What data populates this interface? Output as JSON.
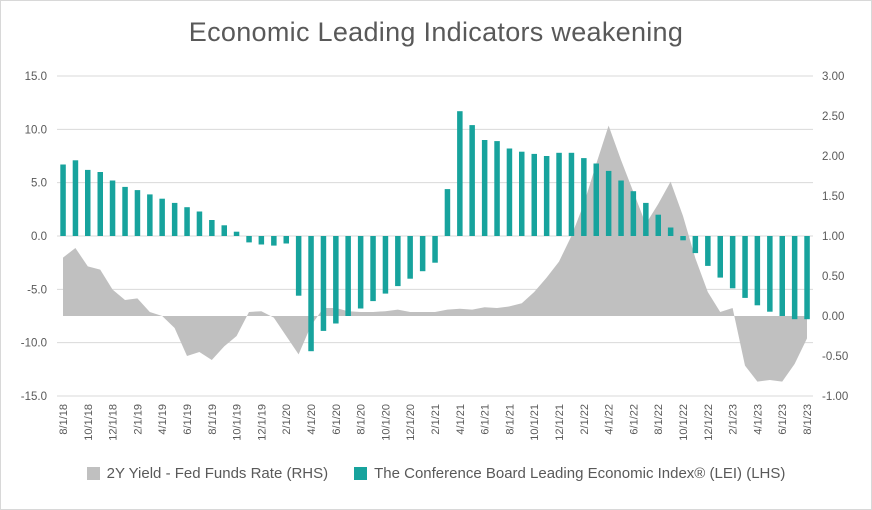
{
  "chart_data": {
    "type": "combo",
    "title": "Economic Leading Indicators weakening",
    "grid": "horizontal",
    "legend_position": "bottom",
    "x": [
      "8/1/18",
      "9/1/18",
      "10/1/18",
      "11/1/18",
      "12/1/18",
      "1/1/19",
      "2/1/19",
      "3/1/19",
      "4/1/19",
      "5/1/19",
      "6/1/19",
      "7/1/19",
      "8/1/19",
      "9/1/19",
      "10/1/19",
      "11/1/19",
      "12/1/19",
      "1/1/20",
      "2/1/20",
      "3/1/20",
      "4/1/20",
      "5/1/20",
      "6/1/20",
      "7/1/20",
      "8/1/20",
      "9/1/20",
      "10/1/20",
      "11/1/20",
      "12/1/20",
      "1/1/21",
      "2/1/21",
      "3/1/21",
      "4/1/21",
      "5/1/21",
      "6/1/21",
      "7/1/21",
      "8/1/21",
      "9/1/21",
      "10/1/21",
      "11/1/21",
      "12/1/21",
      "1/1/22",
      "2/1/22",
      "3/1/22",
      "4/1/22",
      "5/1/22",
      "6/1/22",
      "7/1/22",
      "8/1/22",
      "9/1/22",
      "10/1/22",
      "11/1/22",
      "12/1/22",
      "1/1/23",
      "2/1/23",
      "3/1/23",
      "4/1/23",
      "5/1/23",
      "6/1/23",
      "7/1/23",
      "8/1/23"
    ],
    "x_axis": {
      "tick_every": 2,
      "label_rotation": -90
    },
    "left_axis": {
      "min": -15,
      "max": 15,
      "tick_values": [
        15,
        10,
        5,
        0,
        -5,
        -10,
        -15
      ],
      "tick_labels": [
        "15.0",
        "10.0",
        "5.0",
        "0.0",
        "-5.0",
        "-10.0",
        "-15.0"
      ]
    },
    "right_axis": {
      "min": -1,
      "max": 3,
      "tick_values": [
        3,
        2.5,
        2,
        1.5,
        1,
        0.5,
        0,
        -0.5,
        -1
      ],
      "tick_labels": [
        "3.00",
        "2.50",
        "2.00",
        "1.50",
        "1.00",
        "0.50",
        "0.00",
        "-0.50",
        "-1.00"
      ]
    },
    "series": [
      {
        "name": "2Y Yield - Fed Funds Rate (RHS)",
        "type": "area",
        "axis": "right",
        "baseline": 0,
        "color": "#c0c0c0",
        "values": [
          0.73,
          0.85,
          0.62,
          0.58,
          0.33,
          0.2,
          0.22,
          0.05,
          0.0,
          -0.15,
          -0.5,
          -0.45,
          -0.55,
          -0.38,
          -0.25,
          0.05,
          0.06,
          -0.02,
          -0.25,
          -0.48,
          -0.12,
          0.1,
          0.1,
          0.06,
          0.05,
          0.05,
          0.06,
          0.08,
          0.05,
          0.05,
          0.05,
          0.08,
          0.09,
          0.08,
          0.11,
          0.1,
          0.12,
          0.16,
          0.3,
          0.48,
          0.68,
          1.0,
          1.4,
          1.9,
          2.38,
          1.95,
          1.55,
          1.15,
          1.4,
          1.68,
          1.25,
          0.72,
          0.3,
          0.05,
          0.1,
          -0.62,
          -0.82,
          -0.8,
          -0.82,
          -0.6,
          -0.28
        ]
      },
      {
        "name": "The Conference Board Leading Economic Index® (LEI) (LHS)",
        "type": "bar",
        "axis": "left",
        "color": "#17a39d",
        "values": [
          6.7,
          7.1,
          6.2,
          6.0,
          5.2,
          4.6,
          4.3,
          3.9,
          3.5,
          3.1,
          2.7,
          2.3,
          1.5,
          1.0,
          0.4,
          -0.6,
          -0.8,
          -0.9,
          -0.7,
          -5.6,
          -10.8,
          -8.9,
          -8.2,
          -7.5,
          -6.8,
          -6.1,
          -5.4,
          -4.7,
          -4.0,
          -3.3,
          -2.5,
          4.4,
          11.7,
          10.4,
          9.0,
          8.9,
          8.2,
          7.9,
          7.7,
          7.5,
          7.8,
          7.8,
          7.3,
          6.8,
          6.1,
          5.2,
          4.2,
          3.1,
          2.0,
          0.8,
          -0.4,
          -1.6,
          -2.8,
          -3.9,
          -4.9,
          -5.8,
          -6.5,
          -7.1,
          -7.5,
          -7.8,
          -7.8
        ]
      }
    ]
  },
  "legend": {
    "items": [
      {
        "label": "2Y Yield - Fed Funds Rate (RHS)",
        "color": "#c0c0c0"
      },
      {
        "label": "The Conference Board Leading Economic Index® (LEI) (LHS)",
        "color": "#17a39d"
      }
    ]
  },
  "colors": {
    "text": "#595959",
    "gridline": "#d9d9d9",
    "background": "#ffffff"
  }
}
